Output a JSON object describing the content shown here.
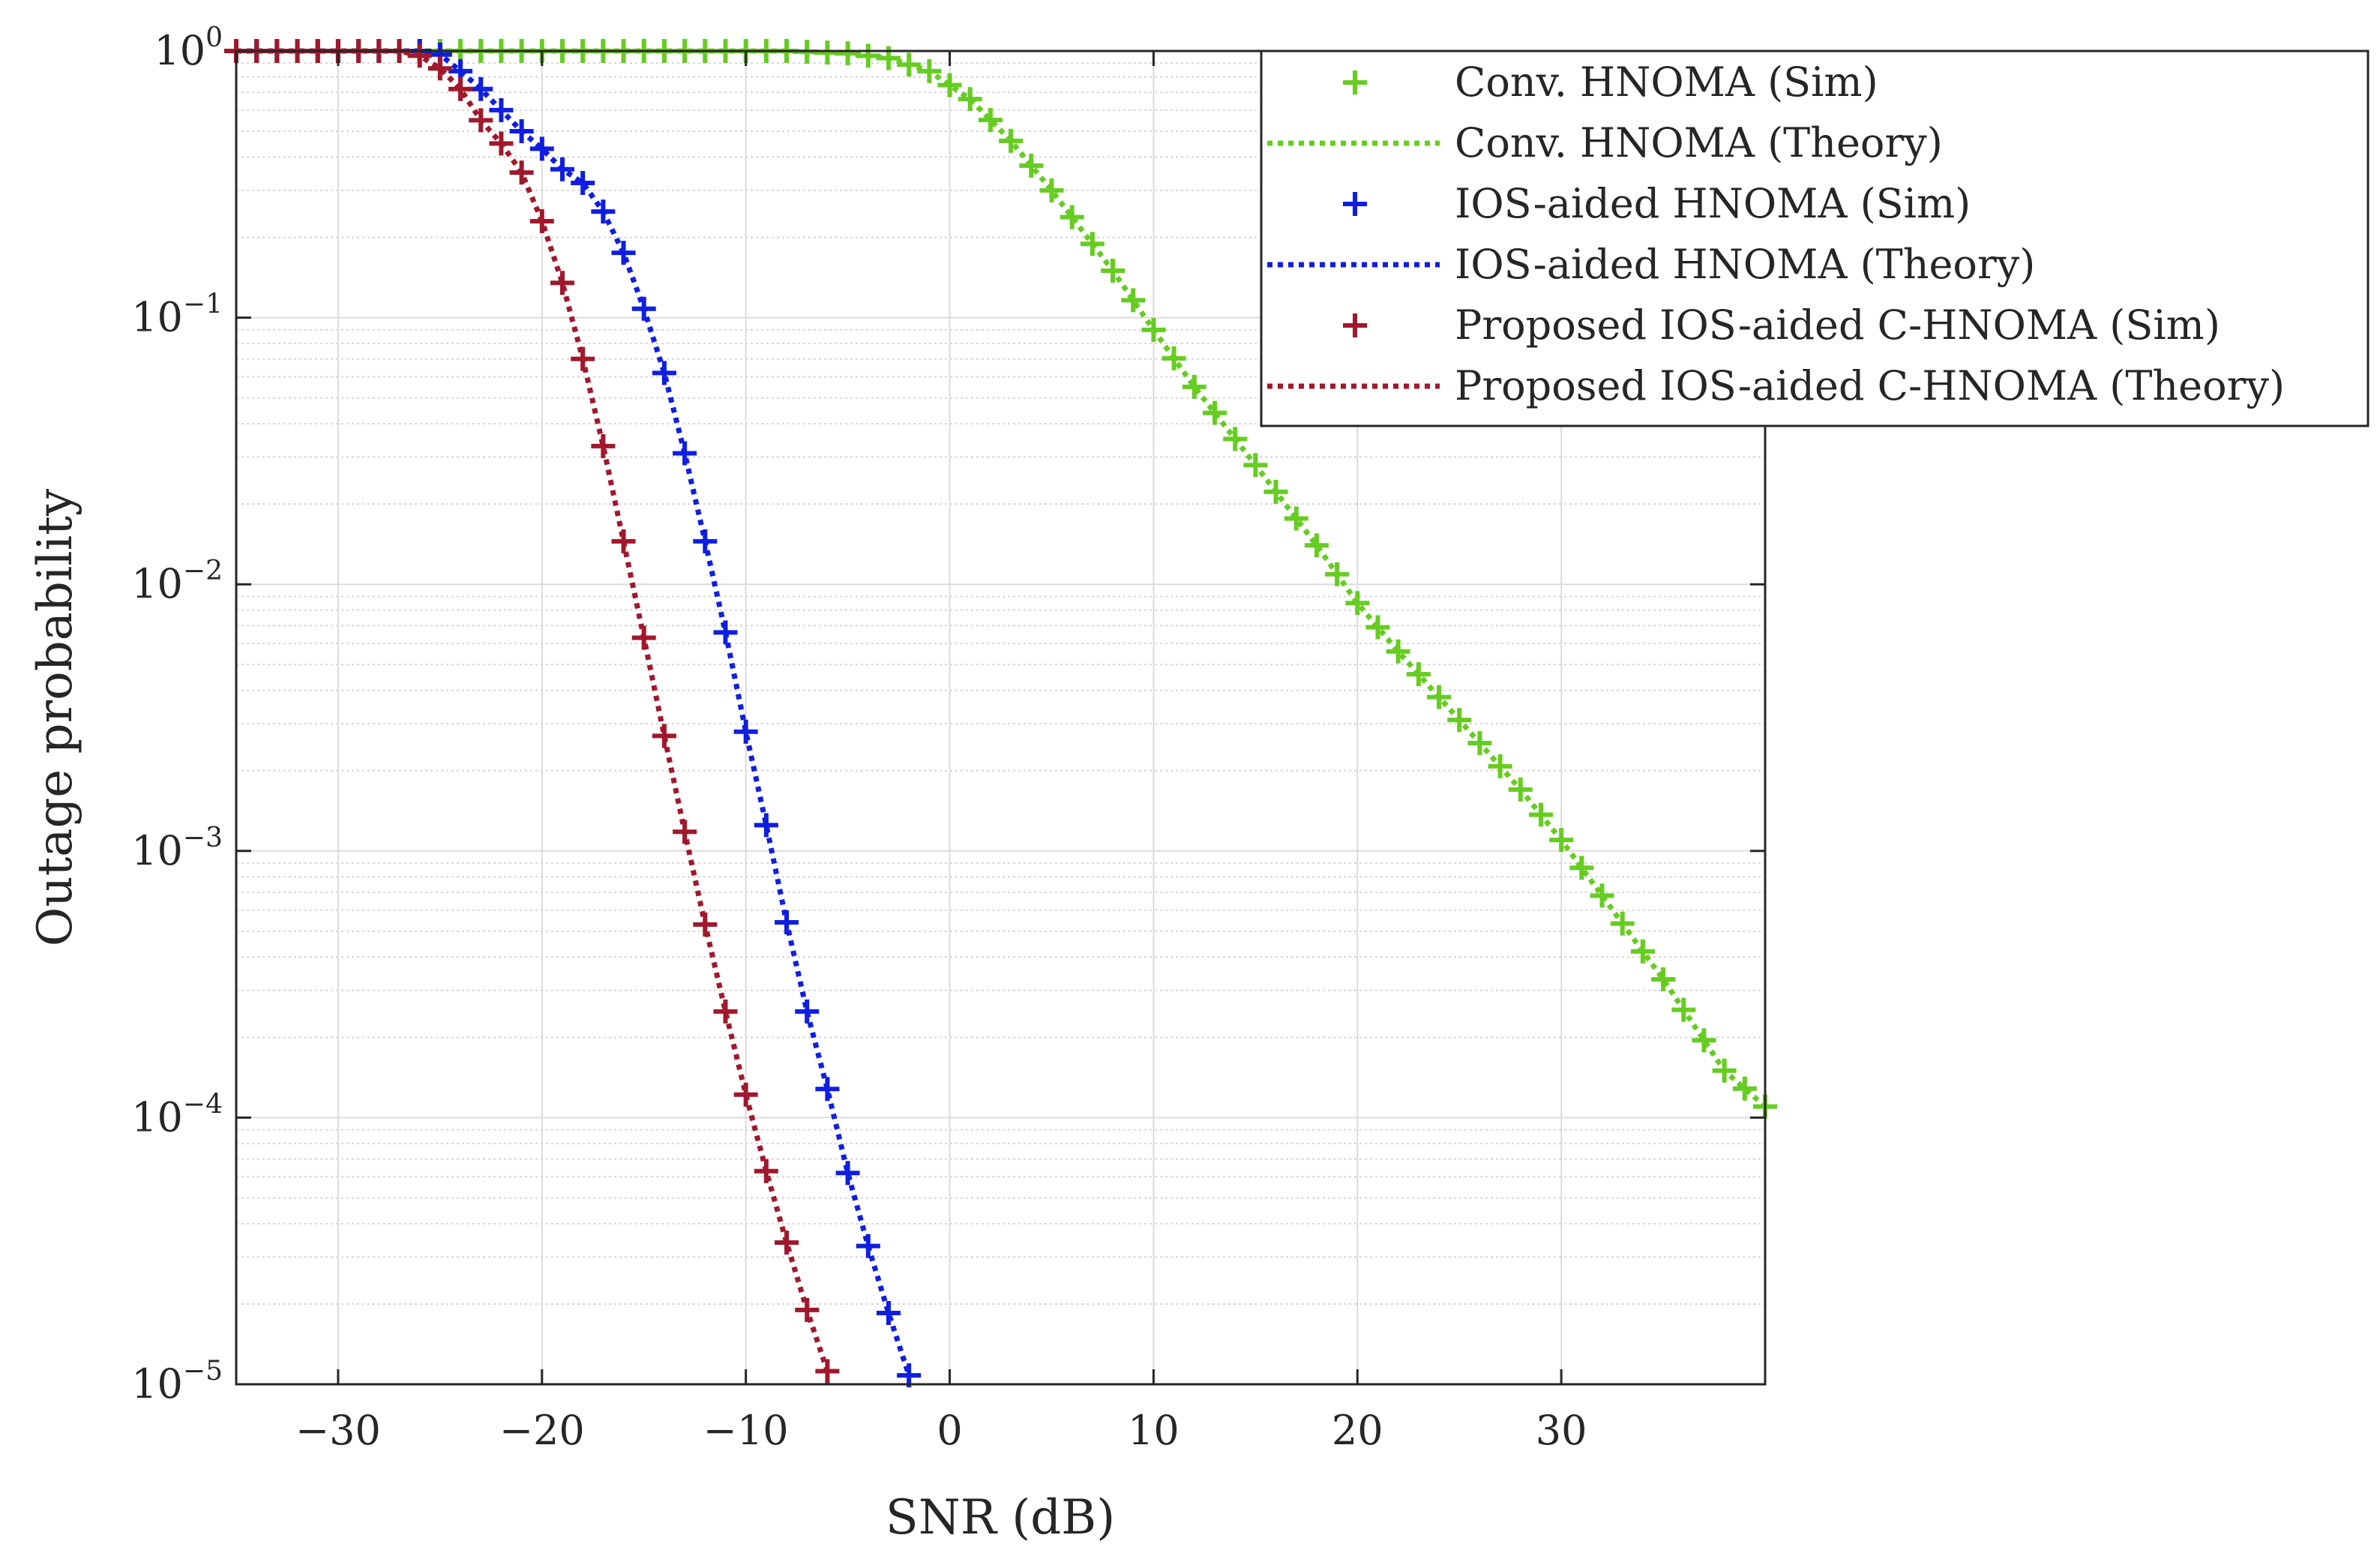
{
  "chart_data": {
    "type": "line",
    "title": "",
    "xlabel": "SNR (dB)",
    "ylabel": "Outage probability",
    "xlim": [
      -35,
      40
    ],
    "ylim": [
      1e-05,
      1
    ],
    "yscale": "log",
    "grid": true,
    "minor_grid": true,
    "legend_position": "top-right",
    "x_ticks": [
      -30,
      -20,
      -10,
      0,
      10,
      20,
      30
    ],
    "x_tick_labels": [
      "−30",
      "−20",
      "−10",
      "0",
      "10",
      "20",
      "30"
    ],
    "y_ticks": [
      {
        "value": 1,
        "base": "10",
        "exp": "0"
      },
      {
        "value": 0.1,
        "base": "10",
        "exp": "−1"
      },
      {
        "value": 0.01,
        "base": "10",
        "exp": "−2"
      },
      {
        "value": 0.001,
        "base": "10",
        "exp": "−3"
      },
      {
        "value": 0.0001,
        "base": "10",
        "exp": "−4"
      },
      {
        "value": 1e-05,
        "base": "10",
        "exp": "−5"
      }
    ],
    "curves": [
      {
        "name_sim": "Conv. HNOMA (Sim)",
        "name_theory": "Conv. HNOMA (Theory)",
        "color": "#66cc22",
        "marker_step": 1,
        "points": [
          [
            -35,
            1
          ],
          [
            -25,
            1
          ],
          [
            -15,
            1
          ],
          [
            -8,
            1
          ],
          [
            -5,
            0.98
          ],
          [
            -3,
            0.94
          ],
          [
            -1,
            0.84
          ],
          [
            1,
            0.66
          ],
          [
            3,
            0.46
          ],
          [
            5,
            0.3
          ],
          [
            8,
            0.15
          ],
          [
            10,
            0.09
          ],
          [
            12,
            0.055
          ],
          [
            15,
            0.028
          ],
          [
            18,
            0.014
          ],
          [
            20,
            0.0085
          ],
          [
            22,
            0.0056
          ],
          [
            25,
            0.0031
          ],
          [
            28,
            0.0017
          ],
          [
            30,
            0.0011
          ],
          [
            32,
            0.00068
          ],
          [
            35,
            0.00033
          ],
          [
            38,
            0.00015
          ],
          [
            40,
            0.00011
          ]
        ]
      },
      {
        "name_sim": "IOS-aided HNOMA (Sim)",
        "name_theory": "IOS-aided HNOMA (Theory)",
        "color": "#0f1ee0",
        "marker_step": 1,
        "points": [
          [
            -35,
            1
          ],
          [
            -26,
            1
          ],
          [
            -25,
            0.97
          ],
          [
            -24,
            0.84
          ],
          [
            -23,
            0.72
          ],
          [
            -22,
            0.6
          ],
          [
            -21,
            0.5
          ],
          [
            -20,
            0.43
          ],
          [
            -19,
            0.36
          ],
          [
            -18,
            0.32
          ],
          [
            -17,
            0.25
          ],
          [
            -16,
            0.175
          ],
          [
            -15,
            0.108
          ],
          [
            -14,
            0.062
          ],
          [
            -13,
            0.031
          ],
          [
            -12,
            0.0145
          ],
          [
            -11,
            0.0066
          ],
          [
            -10,
            0.0028
          ],
          [
            -9,
            0.00125
          ],
          [
            -8,
            0.00054
          ],
          [
            -7,
            0.00025
          ],
          [
            -6,
            0.000128
          ],
          [
            -5,
            6.2e-05
          ],
          [
            -4,
            3.3e-05
          ],
          [
            -3,
            1.85e-05
          ],
          [
            -2,
            1.08e-05
          ]
        ]
      },
      {
        "name_sim": "Proposed IOS-aided C-HNOMA (Sim)",
        "name_theory": "Proposed IOS-aided C-HNOMA (Theory)",
        "color": "#a0182c",
        "marker_step": 1,
        "points": [
          [
            -35,
            1
          ],
          [
            -27,
            1
          ],
          [
            -26,
            0.96
          ],
          [
            -25,
            0.86
          ],
          [
            -24,
            0.72
          ],
          [
            -23,
            0.55
          ],
          [
            -22,
            0.45
          ],
          [
            -21,
            0.35
          ],
          [
            -20,
            0.23
          ],
          [
            -19,
            0.135
          ],
          [
            -18,
            0.07
          ],
          [
            -17,
            0.033
          ],
          [
            -16,
            0.0145
          ],
          [
            -15,
            0.0063
          ],
          [
            -14,
            0.0027
          ],
          [
            -13,
            0.00118
          ],
          [
            -12,
            0.00053
          ],
          [
            -11,
            0.00025
          ],
          [
            -10,
            0.000122
          ],
          [
            -9,
            6.3e-05
          ],
          [
            -8,
            3.4e-05
          ],
          [
            -7,
            1.9e-05
          ],
          [
            -6,
            1.12e-05
          ]
        ]
      }
    ]
  }
}
